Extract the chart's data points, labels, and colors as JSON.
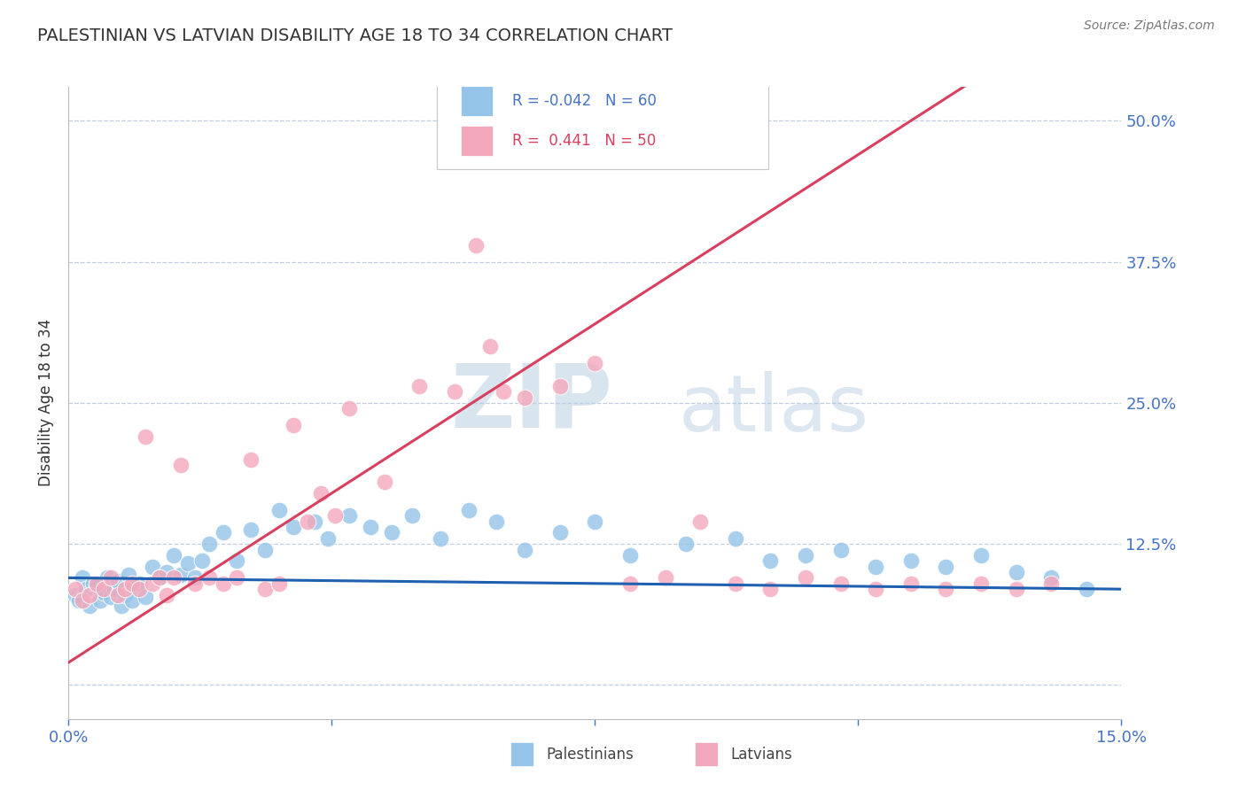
{
  "title": "PALESTINIAN VS LATVIAN DISABILITY AGE 18 TO 34 CORRELATION CHART",
  "source": "Source: ZipAtlas.com",
  "ylabel": "Disability Age 18 to 34",
  "xlim": [
    0.0,
    15.0
  ],
  "ylim": [
    -3.0,
    53.0
  ],
  "palestinian_r": -0.042,
  "palestinian_n": 60,
  "latvian_r": 0.441,
  "latvian_n": 50,
  "palestinian_color": "#94c4e8",
  "latvian_color": "#f4a8bc",
  "palestinian_line_color": "#2060b0",
  "latvian_line_color": "#d84060",
  "trend_line_color": "#e8b0c0",
  "background_color": "#ffffff",
  "grid_color": "#c0cfe0",
  "axis_color": "#4472c4",
  "palestinian_x": [
    0.1,
    0.15,
    0.2,
    0.25,
    0.3,
    0.35,
    0.4,
    0.45,
    0.5,
    0.55,
    0.6,
    0.65,
    0.7,
    0.75,
    0.8,
    0.85,
    0.9,
    0.95,
    1.0,
    1.1,
    1.2,
    1.3,
    1.4,
    1.5,
    1.6,
    1.7,
    1.8,
    1.9,
    2.0,
    2.2,
    2.4,
    2.6,
    2.8,
    3.0,
    3.2,
    3.5,
    3.7,
    4.0,
    4.3,
    4.6,
    4.9,
    5.3,
    5.7,
    6.1,
    6.5,
    7.0,
    7.5,
    8.0,
    8.8,
    9.5,
    10.0,
    10.5,
    11.0,
    11.5,
    12.0,
    12.5,
    13.0,
    13.5,
    14.0,
    14.5
  ],
  "palestinian_y": [
    8.0,
    7.5,
    9.5,
    8.5,
    7.0,
    9.0,
    8.8,
    7.5,
    8.2,
    9.5,
    7.8,
    8.5,
    9.2,
    7.0,
    8.0,
    9.8,
    7.5,
    8.8,
    9.0,
    7.8,
    10.5,
    9.5,
    10.0,
    11.5,
    9.8,
    10.8,
    9.5,
    11.0,
    12.5,
    13.5,
    11.0,
    13.8,
    12.0,
    15.5,
    14.0,
    14.5,
    13.0,
    15.0,
    14.0,
    13.5,
    15.0,
    13.0,
    15.5,
    14.5,
    12.0,
    13.5,
    14.5,
    11.5,
    12.5,
    13.0,
    11.0,
    11.5,
    12.0,
    10.5,
    11.0,
    10.5,
    11.5,
    10.0,
    9.5,
    8.5
  ],
  "latvian_x": [
    0.1,
    0.2,
    0.3,
    0.4,
    0.5,
    0.6,
    0.7,
    0.8,
    0.9,
    1.0,
    1.1,
    1.2,
    1.3,
    1.4,
    1.5,
    1.6,
    1.8,
    2.0,
    2.2,
    2.4,
    2.6,
    2.8,
    3.0,
    3.2,
    3.4,
    3.6,
    3.8,
    4.0,
    4.5,
    5.0,
    5.5,
    5.8,
    6.0,
    6.2,
    6.5,
    7.0,
    7.5,
    8.0,
    8.5,
    9.0,
    9.5,
    10.0,
    10.5,
    11.0,
    11.5,
    12.0,
    12.5,
    13.0,
    13.5,
    14.0
  ],
  "latvian_y": [
    8.5,
    7.5,
    8.0,
    9.0,
    8.5,
    9.5,
    8.0,
    8.5,
    9.0,
    8.5,
    22.0,
    9.0,
    9.5,
    8.0,
    9.5,
    19.5,
    9.0,
    9.5,
    9.0,
    9.5,
    20.0,
    8.5,
    9.0,
    23.0,
    14.5,
    17.0,
    15.0,
    24.5,
    18.0,
    26.5,
    26.0,
    39.0,
    30.0,
    26.0,
    25.5,
    26.5,
    28.5,
    9.0,
    9.5,
    14.5,
    9.0,
    8.5,
    9.5,
    9.0,
    8.5,
    9.0,
    8.5,
    9.0,
    8.5,
    9.0
  ]
}
